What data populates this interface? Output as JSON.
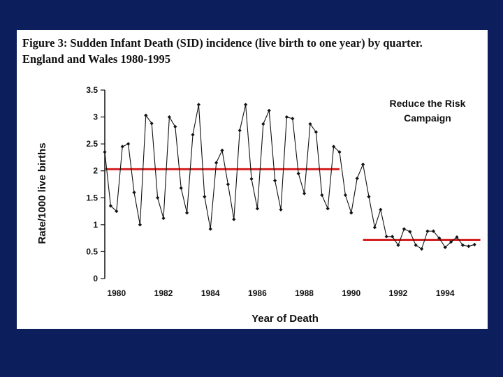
{
  "colors": {
    "background": "#0c1f5c",
    "panel": "#ffffff",
    "series": "#111111",
    "reference": "#d42020"
  },
  "figure": {
    "title_line1": "Figure 3: Sudden Infant Death (SID) incidence (live birth to one year) by quarter.",
    "title_line2": "England and Wales 1980-1995"
  },
  "chart_data": {
    "type": "line",
    "title": "Figure 3: Sudden Infant Death (SID) incidence (live birth to one year) by quarter. England and Wales 1980-1995",
    "xlabel": "Year of Death",
    "ylabel": "Rate/1000 live births",
    "xlim": [
      1980,
      1996
    ],
    "ylim": [
      0,
      3.5
    ],
    "y_ticks": [
      0,
      0.5,
      1,
      1.5,
      2,
      2.5,
      3,
      3.5
    ],
    "y_tick_labels": [
      "0",
      "0.5",
      "1",
      "1.5",
      "2",
      "2.5",
      "3",
      "3.5"
    ],
    "x_ticks": [
      1980,
      1982,
      1984,
      1986,
      1988,
      1990,
      1992,
      1994
    ],
    "x_tick_labels": [
      "1980",
      "1982",
      "1984",
      "1986",
      "1988",
      "1990",
      "1992",
      "1994"
    ],
    "series": [
      {
        "name": "SID rate by quarter",
        "x": [
          1980.0,
          1980.25,
          1980.5,
          1980.75,
          1981.0,
          1981.25,
          1981.5,
          1981.75,
          1982.0,
          1982.25,
          1982.5,
          1982.75,
          1983.0,
          1983.25,
          1983.5,
          1983.75,
          1984.0,
          1984.25,
          1984.5,
          1984.75,
          1985.0,
          1985.25,
          1985.5,
          1985.75,
          1986.0,
          1986.25,
          1986.5,
          1986.75,
          1987.0,
          1987.25,
          1987.5,
          1987.75,
          1988.0,
          1988.25,
          1988.5,
          1988.75,
          1989.0,
          1989.25,
          1989.5,
          1989.75,
          1990.0,
          1990.25,
          1990.5,
          1990.75,
          1991.0,
          1991.25,
          1991.5,
          1991.75,
          1992.0,
          1992.25,
          1992.5,
          1992.75,
          1993.0,
          1993.25,
          1993.5,
          1993.75,
          1994.0,
          1994.25,
          1994.5,
          1994.75,
          1995.0,
          1995.25,
          1995.5,
          1995.75
        ],
        "values": [
          2.35,
          1.35,
          1.25,
          2.45,
          2.5,
          1.6,
          1.0,
          3.03,
          2.88,
          1.5,
          1.12,
          3.0,
          2.82,
          1.68,
          1.22,
          2.67,
          3.23,
          1.52,
          0.92,
          2.15,
          2.38,
          1.75,
          1.1,
          2.75,
          3.23,
          1.85,
          1.3,
          2.87,
          3.12,
          1.82,
          1.28,
          3.0,
          2.97,
          1.95,
          1.58,
          2.87,
          2.72,
          1.55,
          1.3,
          2.45,
          2.35,
          1.55,
          1.22,
          1.86,
          2.12,
          1.52,
          0.95,
          1.28,
          0.78,
          0.78,
          0.62,
          0.92,
          0.87,
          0.62,
          0.55,
          0.88,
          0.88,
          0.75,
          0.58,
          0.68,
          0.77,
          0.62,
          0.6,
          0.63
        ]
      }
    ],
    "reference_lines": [
      {
        "name": "mean before campaign",
        "y": 2.03,
        "x_start": 1980.0,
        "x_end": 1990.0
      },
      {
        "name": "mean after campaign",
        "y": 0.72,
        "x_start": 1991.0,
        "x_end": 1996.0
      }
    ],
    "annotations": [
      {
        "text_line1": "Reduce the Risk",
        "text_line2": "Campaign",
        "position": "top-right"
      }
    ],
    "grid": false
  }
}
